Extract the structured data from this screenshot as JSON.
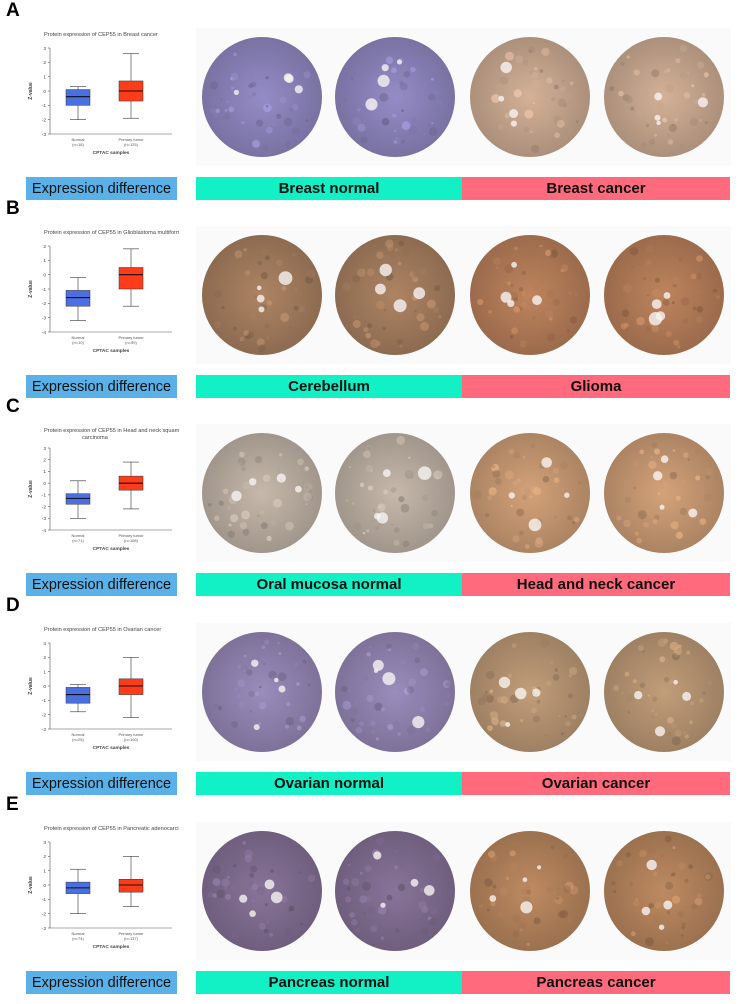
{
  "colors": {
    "normal_box": "#4a6fe0",
    "tumor_box": "#ff3b1a",
    "expression_label_bg": "#5ab1e8",
    "normal_label_bg": "#12f0c6",
    "cancer_label_bg": "#ff6b7c",
    "normal_stain": "#8f86b8",
    "cancer_stain": "#b8896a"
  },
  "panels": [
    {
      "letter": "A",
      "plot_title": "Protein expression of CEP55 in Breast cancer",
      "plot_title_line2": "",
      "normal_stain": "#8a82b8",
      "cancer_stain": "#c4a48c",
      "labels": {
        "expression": "Expression difference",
        "normal": "Breast normal",
        "cancer": "Breast cancer"
      }
    },
    {
      "letter": "B",
      "plot_title": "Protein expression of CEP55 in Glioblastoma multiforme",
      "plot_title_line2": "",
      "normal_stain": "#a07a5c",
      "cancer_stain": "#b07a56",
      "labels": {
        "expression": "Expression difference",
        "normal": "Cerebellum",
        "cancer": "Glioma"
      }
    },
    {
      "letter": "C",
      "plot_title": "Protein expression of CEP55 in Head and neck squamous",
      "plot_title_line2": "carcinoma",
      "normal_stain": "#b7ab9e",
      "cancer_stain": "#c49670",
      "labels": {
        "expression": "Expression difference",
        "normal": "Oral mucosa normal",
        "cancer": "Head and neck cancer"
      }
    },
    {
      "letter": "D",
      "plot_title": "Protein expression of CEP55 in Ovarian cancer",
      "plot_title_line2": "",
      "normal_stain": "#8f82ae",
      "cancer_stain": "#b39270",
      "labels": {
        "expression": "Expression difference",
        "normal": "Ovarian normal",
        "cancer": "Ovarian cancer"
      }
    },
    {
      "letter": "E",
      "plot_title": "Protein expression of CEP55 in Pancreatic adenocarcinoma",
      "plot_title_line2": "",
      "normal_stain": "#7e6b8e",
      "cancer_stain": "#b0805a",
      "labels": {
        "expression": "Expression difference",
        "normal": "Pancreas normal",
        "cancer": "Pancreas cancer"
      }
    }
  ],
  "chart_data": [
    {
      "type": "box",
      "title": "Protein expression of CEP55 in Breast cancer",
      "xlabel": "CPTAC samples",
      "ylabel": "Z-value",
      "ylim": [
        -3,
        3
      ],
      "yticks": [
        -3,
        -2,
        -1,
        0,
        1,
        2,
        3
      ],
      "groups": [
        {
          "name": "Normal",
          "n_label": "(n=18)",
          "min": -2.0,
          "q1": -1.0,
          "median": -0.4,
          "q3": 0.1,
          "max": 0.3
        },
        {
          "name": "Primary tumor",
          "n_label": "(n=125)",
          "min": -1.9,
          "q1": -0.7,
          "median": 0.0,
          "q3": 0.7,
          "max": 2.6
        }
      ]
    },
    {
      "type": "box",
      "title": "Protein expression of CEP55 in Glioblastoma multiforme",
      "xlabel": "CPTAC samples",
      "ylabel": "Z-value",
      "ylim": [
        -4,
        2
      ],
      "yticks": [
        -4,
        -3,
        -2,
        -1,
        0,
        1,
        2
      ],
      "groups": [
        {
          "name": "Normal",
          "n_label": "(n=10)",
          "min": -3.2,
          "q1": -2.2,
          "median": -1.6,
          "q3": -1.1,
          "max": -0.2
        },
        {
          "name": "Primary tumor",
          "n_label": "(n=99)",
          "min": -2.2,
          "q1": -1.0,
          "median": 0.0,
          "q3": 0.5,
          "max": 1.8
        }
      ]
    },
    {
      "type": "box",
      "title": "Protein expression of CEP55 in Head and neck squamous carcinoma",
      "xlabel": "CPTAC samples",
      "ylabel": "Z-value",
      "ylim": [
        -4,
        3
      ],
      "yticks": [
        -4,
        -3,
        -2,
        -1,
        0,
        1,
        2,
        3
      ],
      "groups": [
        {
          "name": "Normal",
          "n_label": "(n=71)",
          "min": -3.0,
          "q1": -1.8,
          "median": -1.3,
          "q3": -0.9,
          "max": 0.2
        },
        {
          "name": "Primary tumor",
          "n_label": "(n=108)",
          "min": -2.2,
          "q1": -0.6,
          "median": 0.0,
          "q3": 0.6,
          "max": 1.8
        }
      ]
    },
    {
      "type": "box",
      "title": "Protein expression of CEP55 in Ovarian cancer",
      "xlabel": "CPTAC samples",
      "ylabel": "Z-value",
      "ylim": [
        -3,
        3
      ],
      "yticks": [
        -3,
        -2,
        -1,
        0,
        1,
        2,
        3
      ],
      "groups": [
        {
          "name": "Normal",
          "n_label": "(n=25)",
          "min": -1.8,
          "q1": -1.2,
          "median": -0.6,
          "q3": -0.1,
          "max": 0.1
        },
        {
          "name": "Primary tumor",
          "n_label": "(n=100)",
          "min": -2.2,
          "q1": -0.6,
          "median": 0.0,
          "q3": 0.5,
          "max": 2.0
        }
      ]
    },
    {
      "type": "box",
      "title": "Protein expression of CEP55 in Pancreatic adenocarcinoma",
      "xlabel": "CPTAC samples",
      "ylabel": "Z-value",
      "ylim": [
        -3,
        3
      ],
      "yticks": [
        -3,
        -2,
        -1,
        0,
        1,
        2,
        3
      ],
      "groups": [
        {
          "name": "Normal",
          "n_label": "(n=74)",
          "min": -2.0,
          "q1": -0.6,
          "median": -0.2,
          "q3": 0.2,
          "max": 1.1
        },
        {
          "name": "Primary tumor",
          "n_label": "(n=137)",
          "min": -1.5,
          "q1": -0.5,
          "median": 0.0,
          "q3": 0.4,
          "max": 2.0
        }
      ]
    }
  ]
}
